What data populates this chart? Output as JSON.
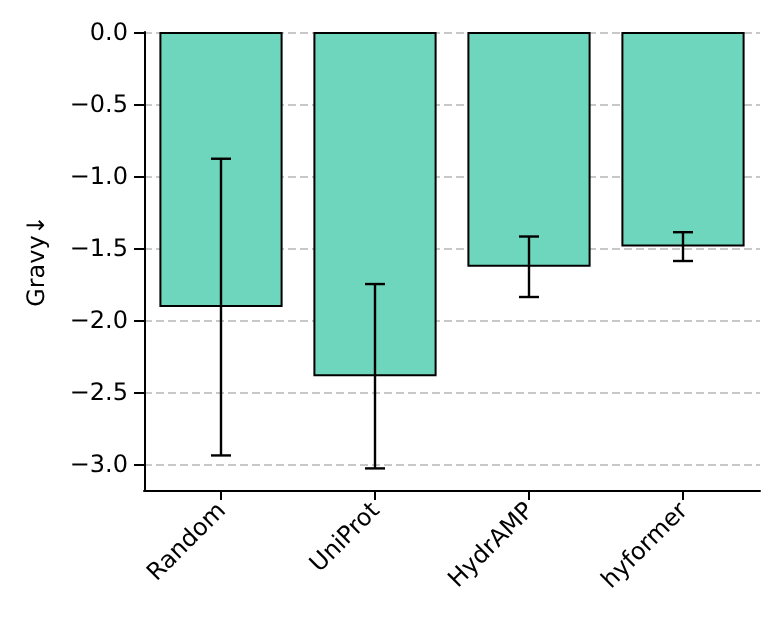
{
  "chart_data": {
    "type": "bar",
    "ylabel": "Gravy↓",
    "categories": [
      "Random",
      "UniProt",
      "HydrAMP",
      "hyformer"
    ],
    "values": [
      -1.91,
      -2.39,
      -1.63,
      -1.49
    ],
    "errors": [
      1.03,
      0.64,
      0.21,
      0.1
    ],
    "color": "#6dd6bd",
    "ylim": [
      -3.18,
      0
    ],
    "yticks": [
      {
        "value": -3,
        "label": "−3.0"
      },
      {
        "value": -2.5,
        "label": "−2.5"
      },
      {
        "value": -2,
        "label": "−2.0"
      },
      {
        "value": -1.5,
        "label": "−1.5"
      },
      {
        "value": -1,
        "label": "−1.0"
      },
      {
        "value": -0.5,
        "label": "−0.5"
      },
      {
        "value": 0,
        "label": "0.0"
      }
    ],
    "grid": "y"
  }
}
